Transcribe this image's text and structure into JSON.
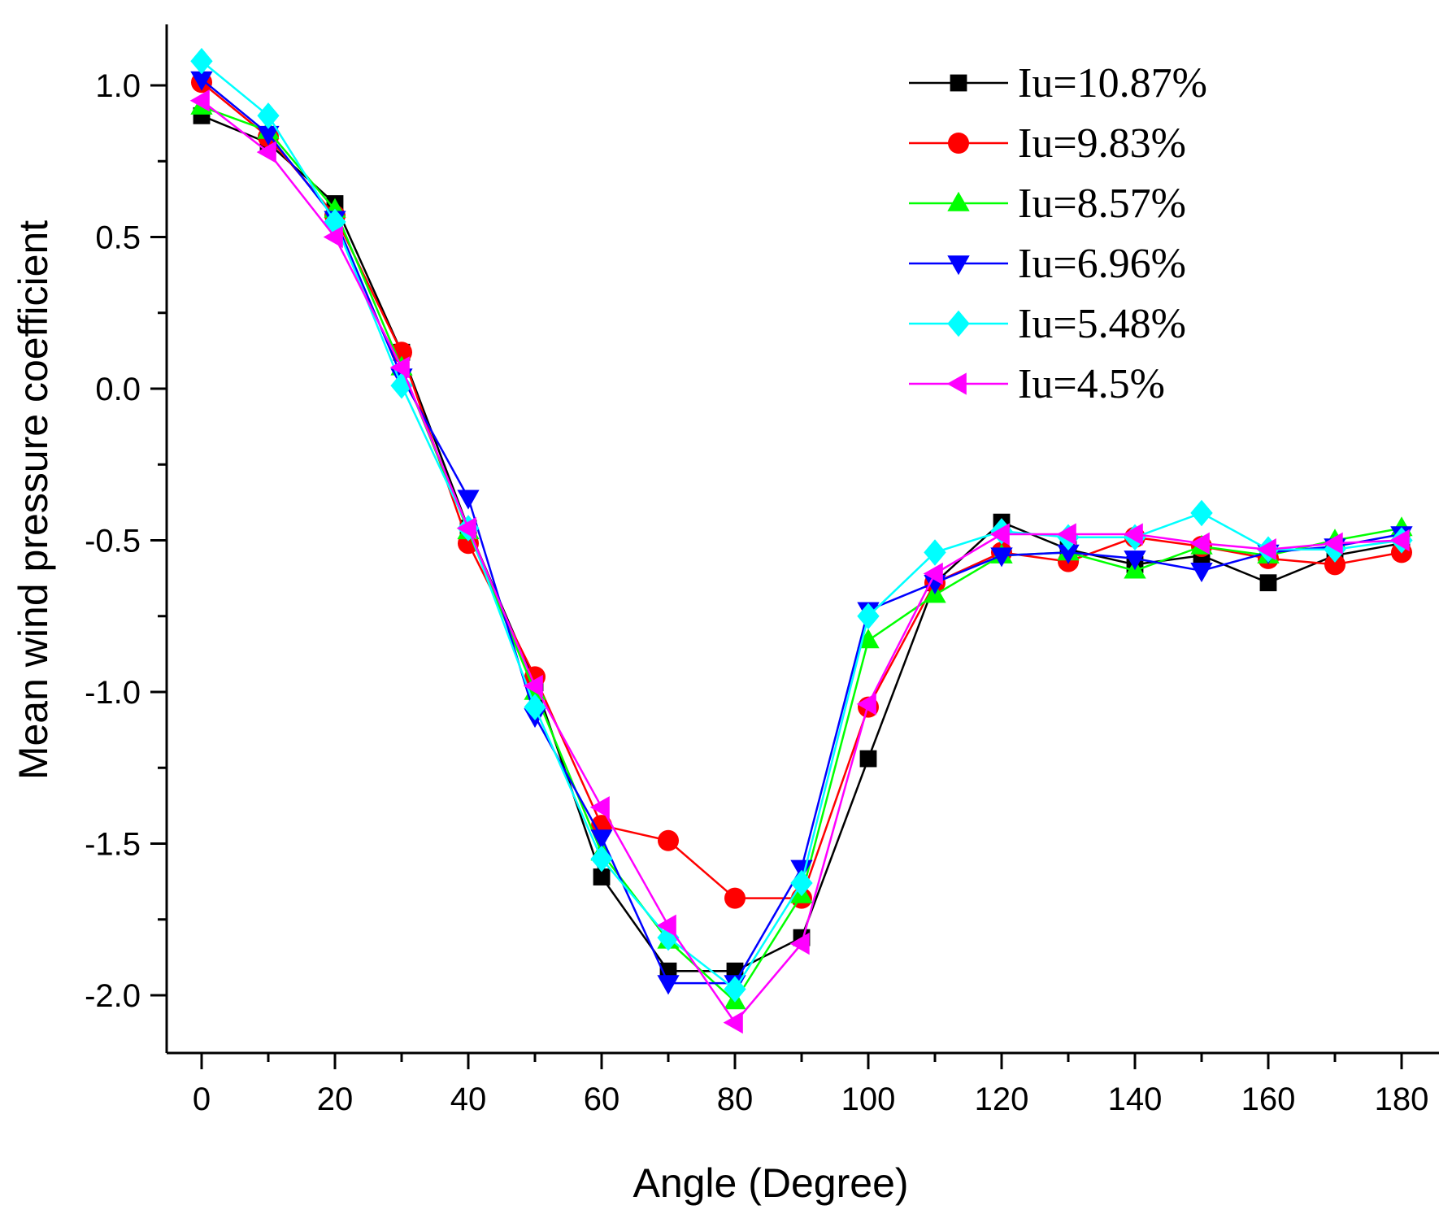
{
  "chart_data": {
    "type": "line",
    "title": "",
    "xlabel": "Angle (Degree)",
    "ylabel": "Mean wind pressure coefficient",
    "xlim": [
      -5,
      185
    ],
    "ylim": [
      -2.18,
      1.22
    ],
    "x_ticks": [
      0,
      20,
      40,
      60,
      80,
      100,
      120,
      140,
      160,
      180
    ],
    "x_tick_labels": [
      "0",
      "20",
      "40",
      "60",
      "80",
      "100",
      "120",
      "140",
      "160",
      "180"
    ],
    "y_ticks": [
      1.0,
      0.5,
      0.0,
      -0.5,
      -1.0,
      -1.5,
      -2.0
    ],
    "y_tick_labels": [
      "1.0",
      "0.5",
      "0.0",
      "-0.5",
      "-1.0",
      "-1.5",
      "-2.0"
    ],
    "legend_position": "top-right",
    "x": [
      0,
      10,
      20,
      30,
      40,
      50,
      60,
      70,
      80,
      90,
      100,
      110,
      120,
      130,
      140,
      150,
      160,
      170,
      180
    ],
    "series": [
      {
        "name": "Iu=10.87%",
        "color": "#000000",
        "marker": "square",
        "values": [
          0.9,
          0.81,
          0.61,
          0.12,
          -0.46,
          -0.97,
          -1.61,
          -1.92,
          -1.92,
          -1.81,
          -1.22,
          -0.64,
          -0.44,
          -0.53,
          -0.58,
          -0.55,
          -0.64,
          -0.55,
          -0.51
        ]
      },
      {
        "name": "Iu=9.83%",
        "color": "#ff0000",
        "marker": "circle",
        "values": [
          1.01,
          0.83,
          0.57,
          0.12,
          -0.51,
          -0.95,
          -1.44,
          -1.49,
          -1.68,
          -1.68,
          -1.05,
          -0.64,
          -0.54,
          -0.57,
          -0.49,
          -0.52,
          -0.56,
          -0.58,
          -0.54
        ]
      },
      {
        "name": "Iu=8.57%",
        "color": "#00ff00",
        "marker": "triangle-up",
        "values": [
          0.93,
          0.85,
          0.59,
          0.07,
          -0.47,
          -1.0,
          -1.53,
          -1.82,
          -2.02,
          -1.67,
          -0.83,
          -0.68,
          -0.55,
          -0.54,
          -0.6,
          -0.52,
          -0.55,
          -0.5,
          -0.46
        ]
      },
      {
        "name": "Iu=6.96%",
        "color": "#0000ff",
        "marker": "triangle-down",
        "values": [
          1.02,
          0.84,
          0.56,
          0.04,
          -0.36,
          -1.08,
          -1.48,
          -1.96,
          -1.96,
          -1.58,
          -0.73,
          -0.64,
          -0.55,
          -0.54,
          -0.56,
          -0.6,
          -0.54,
          -0.52,
          -0.48
        ]
      },
      {
        "name": "Iu=5.48%",
        "color": "#00ffff",
        "marker": "diamond",
        "values": [
          1.08,
          0.9,
          0.55,
          0.01,
          -0.46,
          -1.05,
          -1.55,
          -1.81,
          -1.98,
          -1.63,
          -0.75,
          -0.54,
          -0.47,
          -0.49,
          -0.49,
          -0.41,
          -0.53,
          -0.53,
          -0.5
        ]
      },
      {
        "name": "Iu=4.5%",
        "color": "#ff00ff",
        "marker": "triangle-left",
        "values": [
          0.95,
          0.78,
          0.5,
          0.07,
          -0.46,
          -0.98,
          -1.38,
          -1.77,
          -2.09,
          -1.83,
          -1.04,
          -0.61,
          -0.48,
          -0.48,
          -0.48,
          -0.51,
          -0.53,
          -0.51,
          -0.5
        ]
      }
    ]
  }
}
